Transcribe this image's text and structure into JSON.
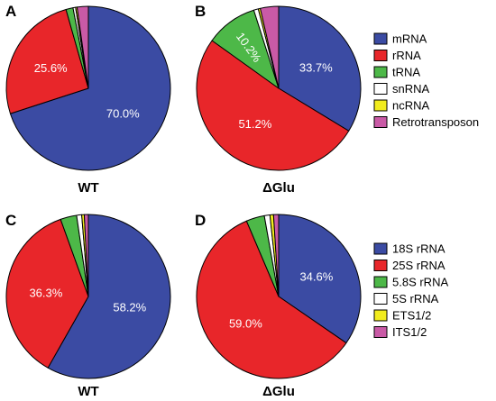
{
  "chart_data": [
    {
      "type": "pie",
      "panel": "A",
      "caption": "WT",
      "slices": [
        {
          "name": "mRNA",
          "value": 70.0,
          "label": "70.0%",
          "color": "#3b4ba3"
        },
        {
          "name": "rRNA",
          "value": 25.6,
          "label": "25.6%",
          "color": "#e8262a"
        },
        {
          "name": "tRNA",
          "value": 1.4,
          "label": "",
          "color": "#4db848"
        },
        {
          "name": "snRNA",
          "value": 0.5,
          "label": "",
          "color": "#ffffff"
        },
        {
          "name": "ncRNA",
          "value": 0.3,
          "label": "",
          "color": "#f2ec1d"
        },
        {
          "name": "Retrotransposon",
          "value": 2.2,
          "label": "",
          "color": "#c95aa6"
        }
      ]
    },
    {
      "type": "pie",
      "panel": "B",
      "caption": "ΔGlu",
      "slices": [
        {
          "name": "mRNA",
          "value": 33.7,
          "label": "33.7%",
          "color": "#3b4ba3"
        },
        {
          "name": "rRNA",
          "value": 51.2,
          "label": "51.2%",
          "color": "#e8262a"
        },
        {
          "name": "tRNA",
          "value": 10.2,
          "label": "10.2%",
          "color": "#4db848"
        },
        {
          "name": "snRNA",
          "value": 0.9,
          "label": "",
          "color": "#ffffff"
        },
        {
          "name": "ncRNA",
          "value": 0.4,
          "label": "",
          "color": "#f2ec1d"
        },
        {
          "name": "Retrotransposon",
          "value": 3.6,
          "label": "",
          "color": "#c95aa6"
        }
      ]
    },
    {
      "type": "pie",
      "panel": "C",
      "caption": "WT",
      "slices": [
        {
          "name": "18S rRNA",
          "value": 58.2,
          "label": "58.2%",
          "color": "#3b4ba3"
        },
        {
          "name": "25S rRNA",
          "value": 36.3,
          "label": "36.3%",
          "color": "#e8262a"
        },
        {
          "name": "5.8S rRNA",
          "value": 3.2,
          "label": "",
          "color": "#4db848"
        },
        {
          "name": "5S rRNA",
          "value": 1.0,
          "label": "",
          "color": "#ffffff"
        },
        {
          "name": "ETS1/2",
          "value": 0.5,
          "label": "",
          "color": "#f2ec1d"
        },
        {
          "name": "ITS1/2",
          "value": 0.8,
          "label": "",
          "color": "#c95aa6"
        }
      ]
    },
    {
      "type": "pie",
      "panel": "D",
      "caption": "ΔGlu",
      "slices": [
        {
          "name": "18S rRNA",
          "value": 34.6,
          "label": "34.6%",
          "color": "#3b4ba3"
        },
        {
          "name": "25S rRNA",
          "value": 59.0,
          "label": "59.0%",
          "color": "#e8262a"
        },
        {
          "name": "5.8S rRNA",
          "value": 3.6,
          "label": "",
          "color": "#4db848"
        },
        {
          "name": "5S rRNA",
          "value": 1.1,
          "label": "",
          "color": "#ffffff"
        },
        {
          "name": "ETS1/2",
          "value": 0.7,
          "label": "",
          "color": "#f2ec1d"
        },
        {
          "name": "ITS1/2",
          "value": 1.0,
          "label": "",
          "color": "#c95aa6"
        }
      ]
    }
  ],
  "legends": [
    {
      "entries": [
        {
          "label": "mRNA",
          "color": "#3b4ba3"
        },
        {
          "label": "rRNA",
          "color": "#e8262a"
        },
        {
          "label": "tRNA",
          "color": "#4db848"
        },
        {
          "label": "snRNA",
          "color": "#ffffff"
        },
        {
          "label": "ncRNA",
          "color": "#f2ec1d"
        },
        {
          "label": "Retrotransposon",
          "color": "#c95aa6"
        }
      ]
    },
    {
      "entries": [
        {
          "label": "18S rRNA",
          "color": "#3b4ba3"
        },
        {
          "label": "25S rRNA",
          "color": "#e8262a"
        },
        {
          "label": "5.8S rRNA",
          "color": "#4db848"
        },
        {
          "label": "5S rRNA",
          "color": "#ffffff"
        },
        {
          "label": "ETS1/2",
          "color": "#f2ec1d"
        },
        {
          "label": "ITS1/2",
          "color": "#c95aa6"
        }
      ]
    }
  ]
}
